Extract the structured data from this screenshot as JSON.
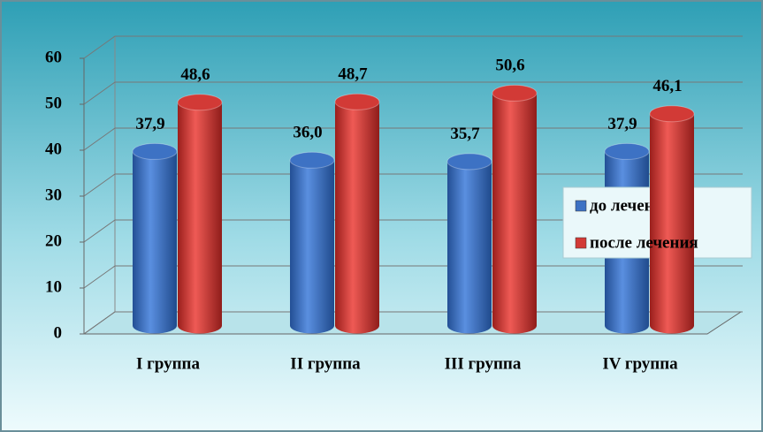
{
  "chart_data": {
    "type": "bar",
    "categories": [
      "I группа",
      "II группа",
      "III группа",
      "IV группа"
    ],
    "series": [
      {
        "name": "до лечения",
        "color": "#3d72c4",
        "values": [
          37.9,
          36.0,
          35.7,
          37.9
        ],
        "value_labels": [
          "37,9",
          "36,0",
          "35,7",
          "37,9"
        ]
      },
      {
        "name": "после лечения",
        "color": "#d23a36",
        "values": [
          48.6,
          48.7,
          50.6,
          46.1
        ],
        "value_labels": [
          "48,6",
          "48,7",
          "50,6",
          "46,1"
        ]
      }
    ],
    "ylim": [
      0,
      60
    ],
    "yticks": [
      0,
      10,
      20,
      30,
      40,
      50,
      60
    ],
    "grid": true,
    "legend": "right"
  }
}
